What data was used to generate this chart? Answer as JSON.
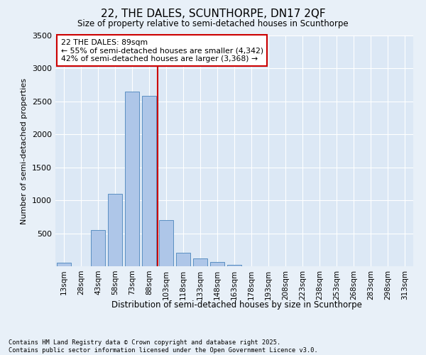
{
  "title": "22, THE DALES, SCUNTHORPE, DN17 2QF",
  "subtitle": "Size of property relative to semi-detached houses in Scunthorpe",
  "xlabel": "Distribution of semi-detached houses by size in Scunthorpe",
  "ylabel": "Number of semi-detached properties",
  "bins": [
    "13sqm",
    "28sqm",
    "43sqm",
    "58sqm",
    "73sqm",
    "88sqm",
    "103sqm",
    "118sqm",
    "133sqm",
    "148sqm",
    "163sqm",
    "178sqm",
    "193sqm",
    "208sqm",
    "223sqm",
    "238sqm",
    "253sqm",
    "268sqm",
    "283sqm",
    "298sqm",
    "313sqm"
  ],
  "values": [
    50,
    0,
    550,
    1100,
    2650,
    2580,
    700,
    200,
    120,
    70,
    20,
    5,
    2,
    1,
    0,
    0,
    0,
    0,
    0,
    0,
    0
  ],
  "bar_color": "#aec6e8",
  "bar_edge_color": "#5a8fc2",
  "vline_color": "#cc0000",
  "annotation_text": "22 THE DALES: 89sqm\n← 55% of semi-detached houses are smaller (4,342)\n42% of semi-detached houses are larger (3,368) →",
  "annotation_box_color": "#ffffff",
  "annotation_box_edge": "#cc0000",
  "ylim": [
    0,
    3500
  ],
  "yticks": [
    0,
    500,
    1000,
    1500,
    2000,
    2500,
    3000,
    3500
  ],
  "footer1": "Contains HM Land Registry data © Crown copyright and database right 2025.",
  "footer2": "Contains public sector information licensed under the Open Government Licence v3.0.",
  "bg_color": "#e8f0f8",
  "plot_bg_color": "#dce8f5"
}
